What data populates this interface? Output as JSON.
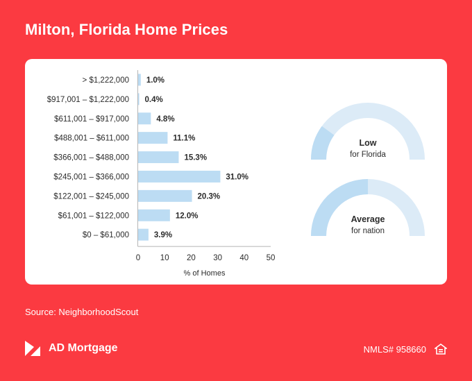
{
  "page": {
    "title": "Milton, Florida Home Prices",
    "source": "Source: NeighborhoodScout",
    "brand": "AD Mortgage",
    "nmls": "NMLS# 958660"
  },
  "icons": {
    "logo": "ad-mortgage-logo-icon",
    "housing": "equal-housing-icon"
  },
  "colors": {
    "background": "#fb3a41",
    "bar": "#bcdcf3",
    "gauge_fill": "#bcdcf3",
    "gauge_track": "#dcebf7",
    "text": "#2b2b2b"
  },
  "chart_data": [
    {
      "type": "bar",
      "orientation": "horizontal",
      "categories": [
        "> $1,222,000",
        "$917,001 – $1,222,000",
        "$611,001 – $917,000",
        "$488,001 – $611,000",
        "$366,001 – $488,000",
        "$245,001 – $366,000",
        "$122,001 – $245,000",
        "$61,001 – $122,000",
        "$0 – $61,000"
      ],
      "values": [
        1.0,
        0.4,
        4.8,
        11.1,
        15.3,
        31.0,
        20.3,
        12.0,
        3.9
      ],
      "value_labels": [
        "1.0%",
        "0.4%",
        "4.8%",
        "11.1%",
        "15.3%",
        "31.0%",
        "20.3%",
        "12.0%",
        "3.9%"
      ],
      "xlabel": "% of Homes",
      "xlim": [
        0,
        50
      ],
      "xticks": [
        0,
        10,
        20,
        30,
        40,
        50
      ],
      "grid": false
    },
    {
      "type": "gauge",
      "level": 0.2,
      "label": "Low",
      "sublabel": "for Florida"
    },
    {
      "type": "gauge",
      "level": 0.5,
      "label": "Average",
      "sublabel": "for nation"
    }
  ]
}
